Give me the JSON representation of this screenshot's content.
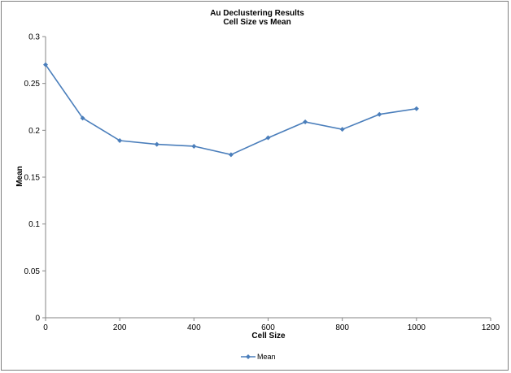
{
  "chart_data": {
    "type": "line",
    "title": "Au Declustering Results",
    "subtitle": "Cell Size vs Mean",
    "xlabel": "Cell Size",
    "ylabel": "Mean",
    "xlim": [
      0,
      1200
    ],
    "ylim": [
      0,
      0.3
    ],
    "x_ticks": [
      0,
      200,
      400,
      600,
      800,
      1000,
      1200
    ],
    "y_ticks": [
      0,
      0.05,
      0.1,
      0.15,
      0.2,
      0.25,
      0.3
    ],
    "x_tick_labels": [
      "0",
      "200",
      "400",
      "600",
      "800",
      "1000",
      "1200"
    ],
    "y_tick_labels": [
      "0",
      "0.05",
      "0.1",
      "0.15",
      "0.2",
      "0.25",
      "0.3"
    ],
    "grid": false,
    "legend_position": "bottom",
    "series": [
      {
        "name": "Mean",
        "color": "#4a7ebb",
        "marker": "diamond",
        "x": [
          0,
          100,
          200,
          300,
          400,
          500,
          600,
          700,
          800,
          900,
          1000
        ],
        "y": [
          0.27,
          0.213,
          0.189,
          0.185,
          0.183,
          0.174,
          0.192,
          0.209,
          0.201,
          0.217,
          0.223
        ]
      }
    ]
  }
}
